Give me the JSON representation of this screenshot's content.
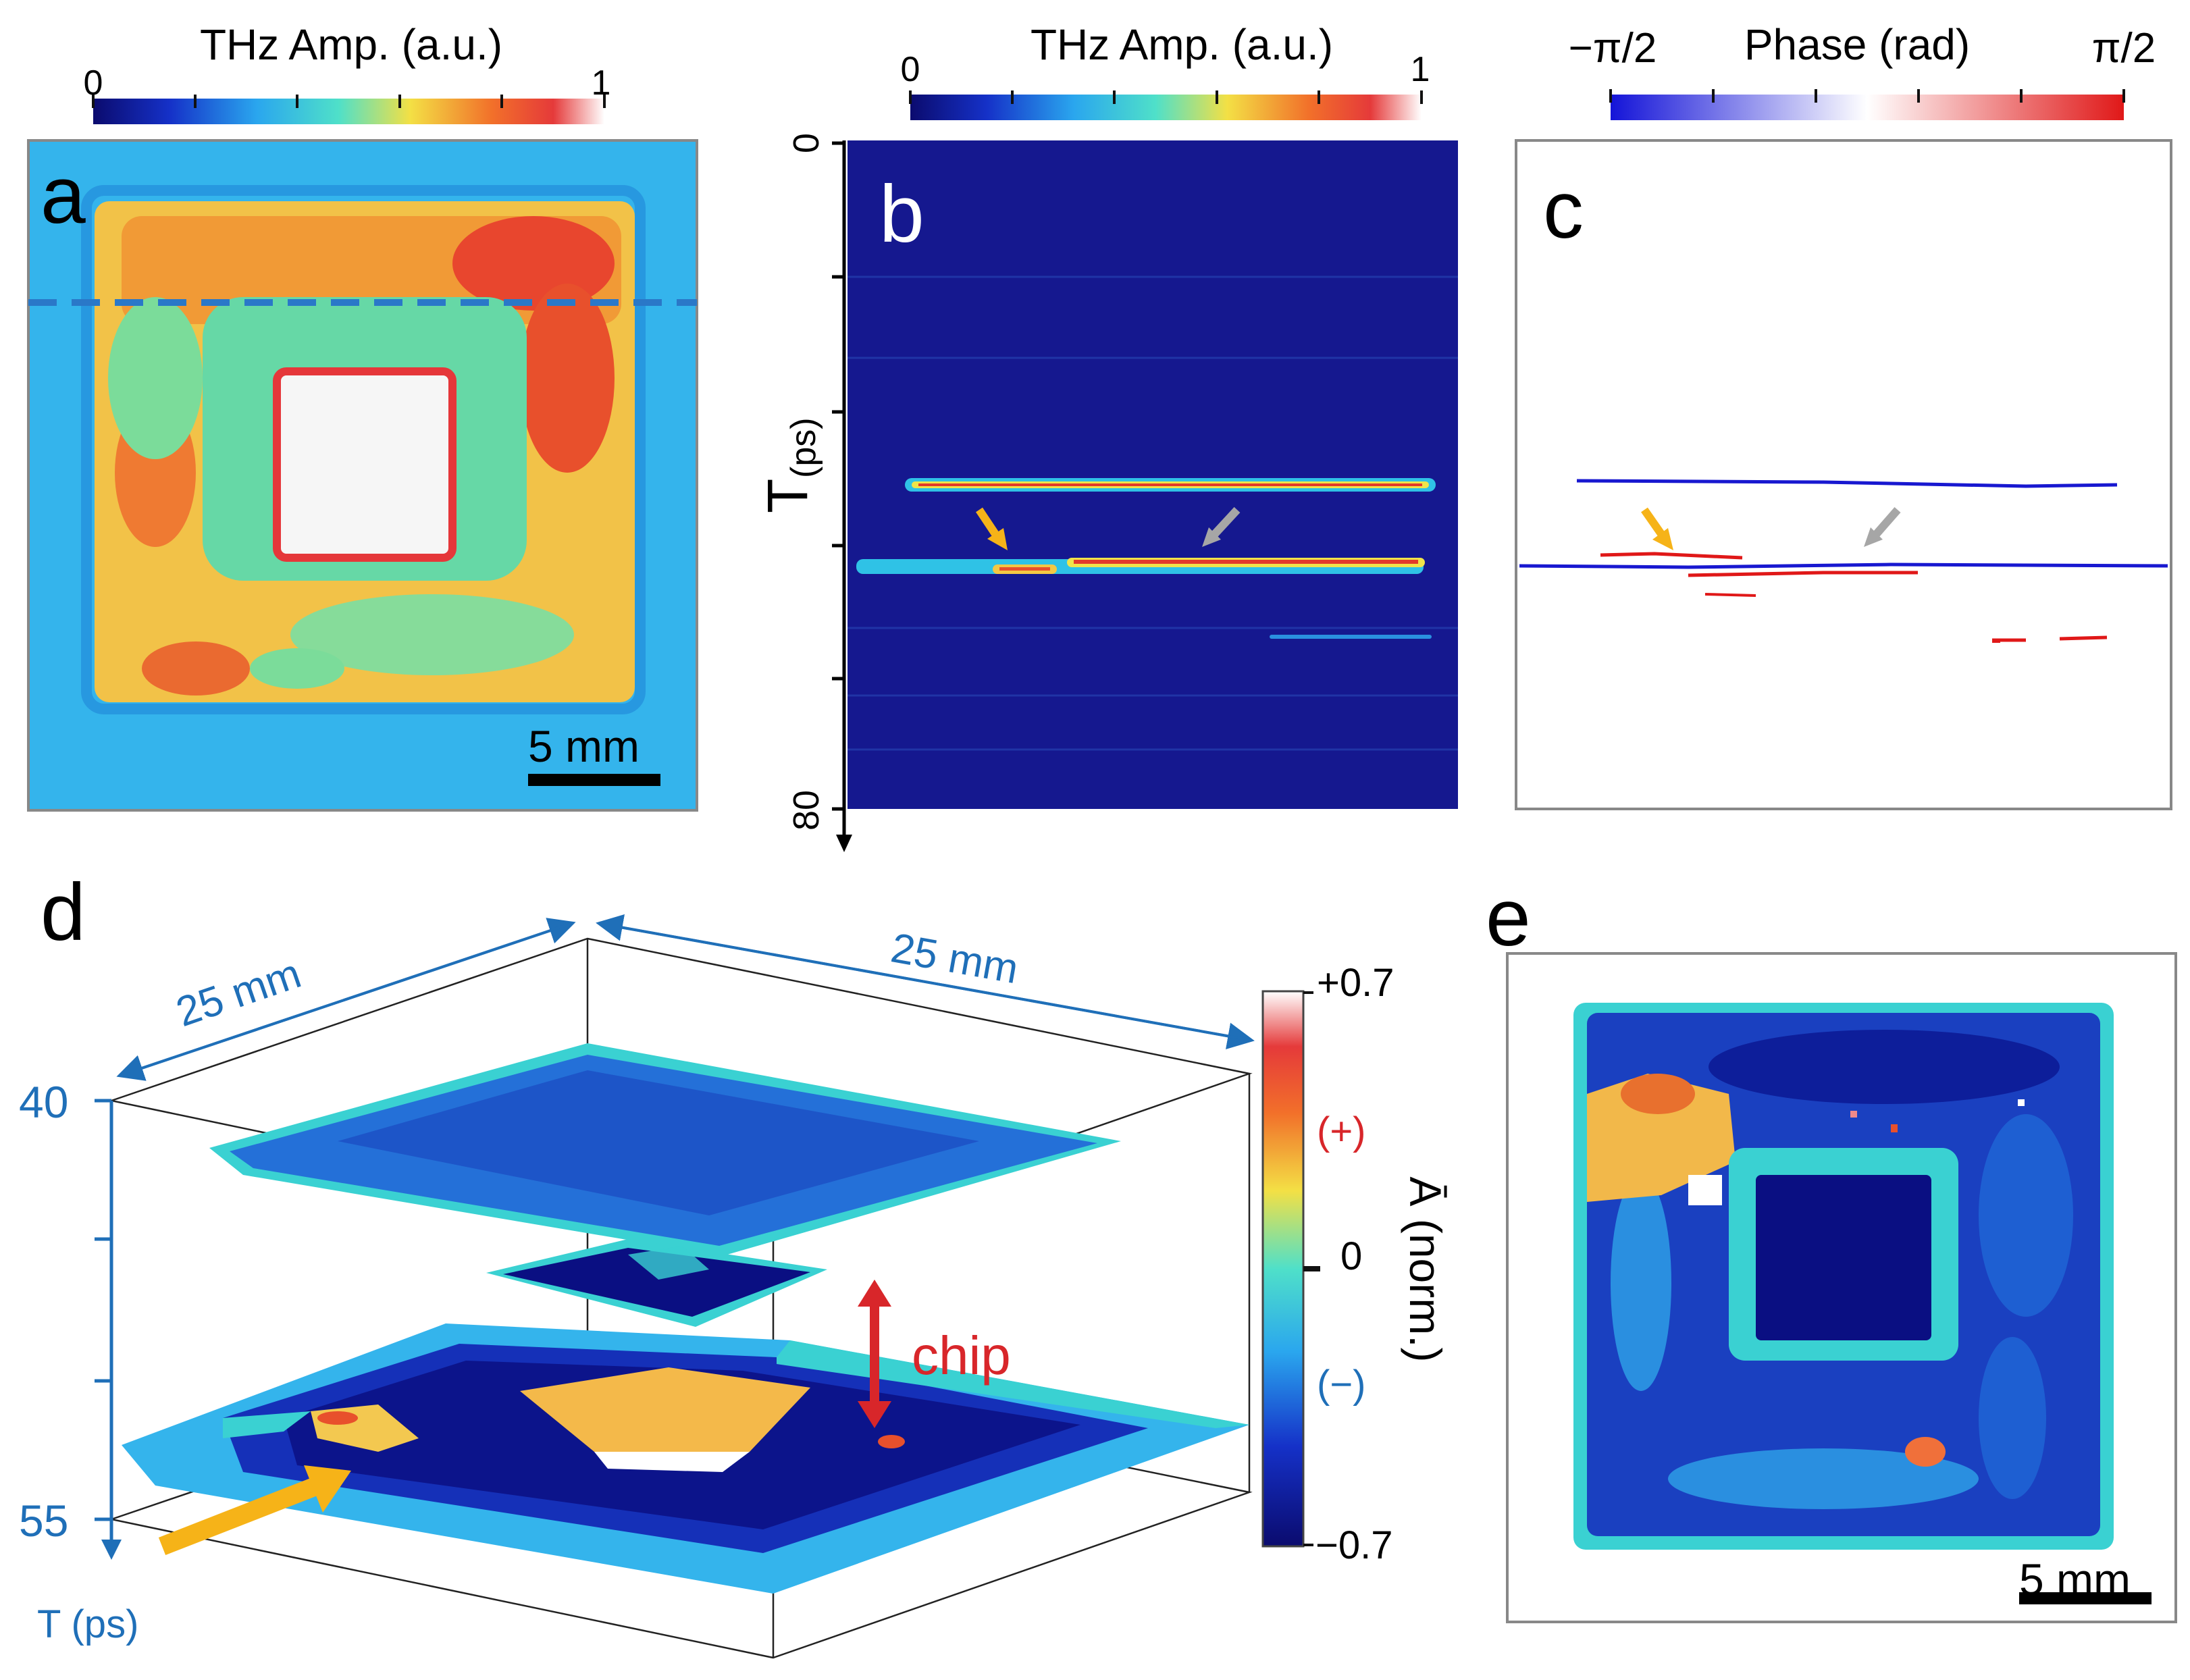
{
  "colorbars": {
    "a": {
      "title": "THz Amp. (a.u.)",
      "min": "0",
      "max": "1"
    },
    "b": {
      "title": "THz Amp. (a.u.)",
      "min": "0",
      "max": "1"
    },
    "c": {
      "title": "Phase (rad)",
      "min": "−π/2",
      "max": "π/2"
    },
    "d": {
      "max": "+0.7",
      "mid": "0",
      "min": "−0.7",
      "plus": "(+)",
      "minus": "(−)",
      "label": "Ā (norm.)"
    }
  },
  "panels": {
    "a": {
      "letter": "a",
      "scalebar": "5 mm"
    },
    "b": {
      "letter": "b",
      "axis_label": "T",
      "axis_sub": "(ps)",
      "axis_start": "0",
      "axis_end": "80"
    },
    "c": {
      "letter": "c"
    },
    "d": {
      "letter": "d",
      "dim_left": "25 mm",
      "dim_right": "25 mm",
      "t_top": "40",
      "t_bottom": "55",
      "t_axis": "T (ps)",
      "chip": "chip"
    },
    "e": {
      "letter": "e",
      "scalebar": "5 mm"
    }
  },
  "colors": {
    "jet_dark": "#00007f",
    "jet_blue": "#1f6fe0",
    "jet_cyan": "#37c8ee",
    "jet_yellow": "#f6c242",
    "jet_red": "#e23a2a",
    "arrow_orange": "#f6b318",
    "arrow_gray": "#a6a6a6",
    "axis_blue": "#1f6fb8",
    "chip_red": "#d8262a"
  }
}
